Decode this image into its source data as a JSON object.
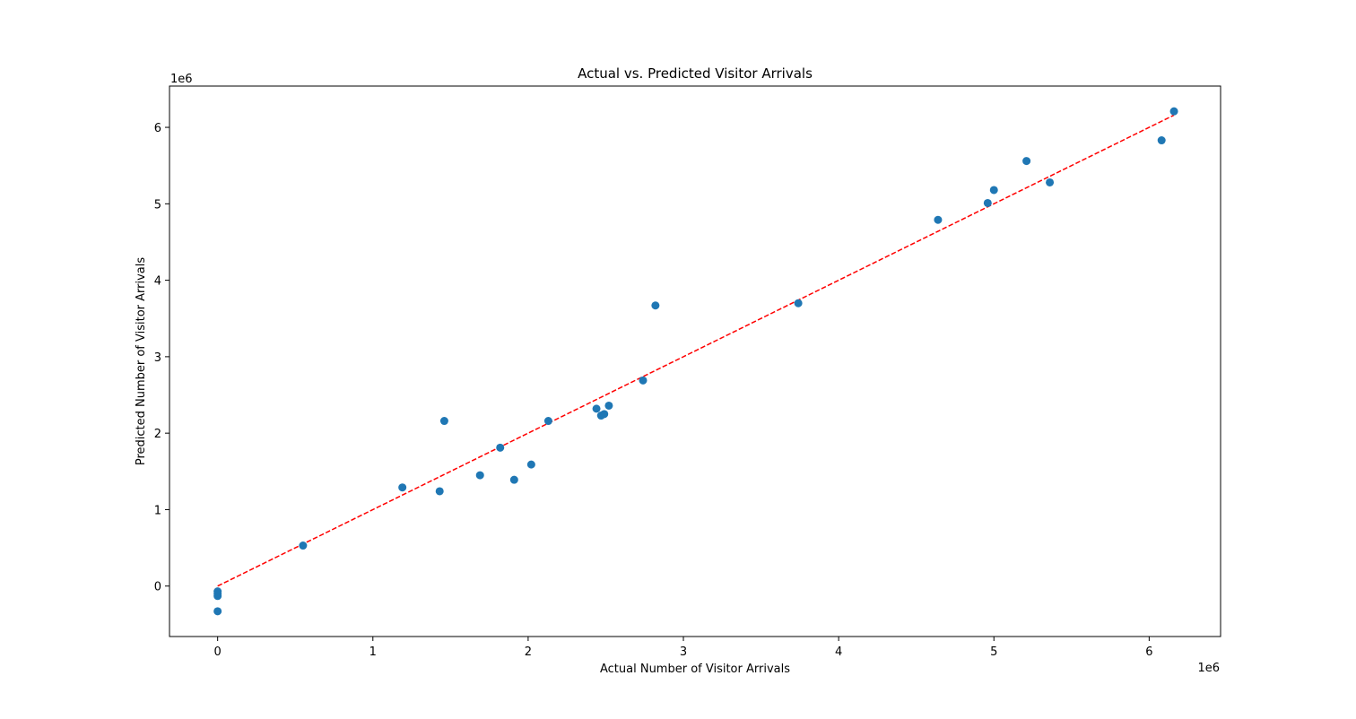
{
  "chart_data": {
    "type": "scatter",
    "title": "Actual vs. Predicted Visitor Arrivals",
    "xlabel": "Actual Number of Visitor Arrivals",
    "ylabel": "Predicted Number of Visitor Arrivals",
    "x_offset_label": "1e6",
    "y_offset_label": "1e6",
    "xlim": [
      -310000,
      6460000
    ],
    "ylim": [
      -660000,
      6540000
    ],
    "xticks": [
      0,
      1,
      2,
      3,
      4,
      5,
      6
    ],
    "yticks": [
      0,
      1,
      2,
      3,
      4,
      5,
      6
    ],
    "xtick_labels": [
      "0",
      "1",
      "2",
      "3",
      "4",
      "5",
      "6"
    ],
    "ytick_labels": [
      "0",
      "1",
      "2",
      "3",
      "4",
      "5",
      "6"
    ],
    "tick_scale": 1000000,
    "grid": false,
    "marker_color": "#1f77b4",
    "reference_line": {
      "style": "dashed",
      "color": "#ff0000",
      "from": [
        0,
        0
      ],
      "to": [
        6160000,
        6160000
      ]
    },
    "points": [
      {
        "x": 0,
        "y": -330000
      },
      {
        "x": 0,
        "y": -130000
      },
      {
        "x": 0,
        "y": -100000
      },
      {
        "x": 0,
        "y": -70000
      },
      {
        "x": 550000,
        "y": 530000
      },
      {
        "x": 1190000,
        "y": 1290000
      },
      {
        "x": 1430000,
        "y": 1240000
      },
      {
        "x": 1460000,
        "y": 2160000
      },
      {
        "x": 1690000,
        "y": 1450000
      },
      {
        "x": 1820000,
        "y": 1810000
      },
      {
        "x": 1910000,
        "y": 1390000
      },
      {
        "x": 2020000,
        "y": 1590000
      },
      {
        "x": 2130000,
        "y": 2160000
      },
      {
        "x": 2440000,
        "y": 2320000
      },
      {
        "x": 2470000,
        "y": 2230000
      },
      {
        "x": 2490000,
        "y": 2250000
      },
      {
        "x": 2520000,
        "y": 2360000
      },
      {
        "x": 2740000,
        "y": 2690000
      },
      {
        "x": 2820000,
        "y": 3670000
      },
      {
        "x": 3740000,
        "y": 3700000
      },
      {
        "x": 4640000,
        "y": 4790000
      },
      {
        "x": 4960000,
        "y": 5010000
      },
      {
        "x": 5000000,
        "y": 5180000
      },
      {
        "x": 5210000,
        "y": 5560000
      },
      {
        "x": 5360000,
        "y": 5280000
      },
      {
        "x": 6080000,
        "y": 5830000
      },
      {
        "x": 6160000,
        "y": 6210000
      }
    ]
  }
}
